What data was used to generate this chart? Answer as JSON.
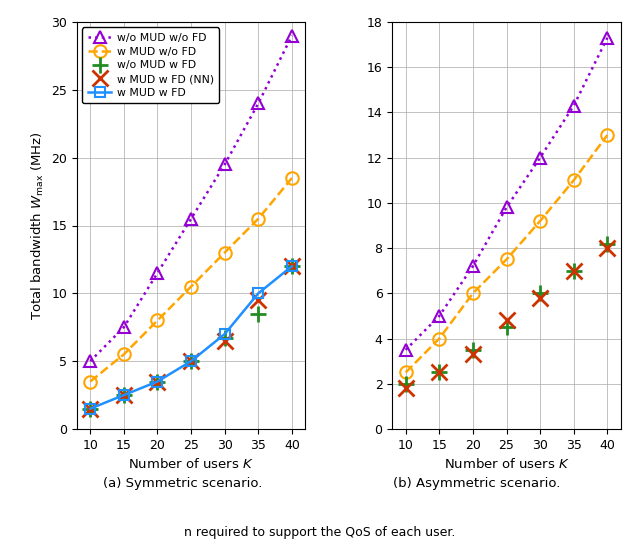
{
  "K": [
    10,
    15,
    20,
    25,
    30,
    35,
    40
  ],
  "sym": {
    "wo_MUD_wo_FD": [
      5.0,
      7.5,
      11.5,
      15.5,
      19.5,
      24.0,
      29.0
    ],
    "w_MUD_wo_FD": [
      3.5,
      5.5,
      8.0,
      10.5,
      13.0,
      15.5,
      18.5
    ],
    "wo_MUD_w_FD": [
      1.5,
      2.5,
      3.5,
      5.0,
      6.7,
      8.5,
      12.0
    ],
    "w_MUD_w_FD_NN": [
      1.5,
      2.5,
      3.5,
      5.0,
      6.5,
      9.5,
      12.0
    ],
    "w_MUD_w_FD": [
      1.5,
      2.5,
      3.5,
      5.0,
      7.0,
      10.0,
      12.0
    ]
  },
  "asym": {
    "wo_MUD_wo_FD": [
      3.5,
      5.0,
      7.2,
      9.8,
      12.0,
      14.3,
      17.3
    ],
    "w_MUD_wo_FD": [
      2.5,
      4.0,
      6.0,
      7.5,
      9.2,
      11.0,
      13.0
    ],
    "wo_MUD_w_FD": [
      2.0,
      2.5,
      3.5,
      4.5,
      6.0,
      7.0,
      8.2
    ],
    "w_MUD_w_FD_NN": [
      1.8,
      2.5,
      3.3,
      4.8,
      5.8,
      7.0,
      8.0
    ]
  },
  "colors": {
    "wo_MUD_wo_FD": "#9400D3",
    "w_MUD_wo_FD": "#FFA500",
    "wo_MUD_w_FD": "#228B22",
    "w_MUD_w_FD_NN": "#CC3300",
    "w_MUD_w_FD": "#1E90FF"
  },
  "labels": {
    "wo_MUD_wo_FD": "w/o MUD w/o FD",
    "w_MUD_wo_FD": "w MUD w/o FD",
    "wo_MUD_w_FD": "w/o MUD w FD",
    "w_MUD_w_FD_NN": "w MUD w FD (NN)",
    "w_MUD_w_FD": "w MUD w FD"
  },
  "ylabel": "Total bandwidth $W_{\\mathrm{max}}$ (MHz)",
  "xlabel": "Number of users $K$",
  "title_a": "(a) Symmetric scenario.",
  "title_b": "(b) Asymmetric scenario.",
  "caption": "n required to support the QoS of each user.",
  "ylim_a": [
    0,
    30
  ],
  "ylim_b": [
    0,
    18
  ],
  "yticks_a": [
    0,
    5,
    10,
    15,
    20,
    25,
    30
  ],
  "yticks_b": [
    0,
    2,
    4,
    6,
    8,
    10,
    12,
    14,
    16,
    18
  ],
  "xticks": [
    10,
    15,
    20,
    25,
    30,
    35,
    40
  ],
  "xlim": [
    8,
    42
  ]
}
